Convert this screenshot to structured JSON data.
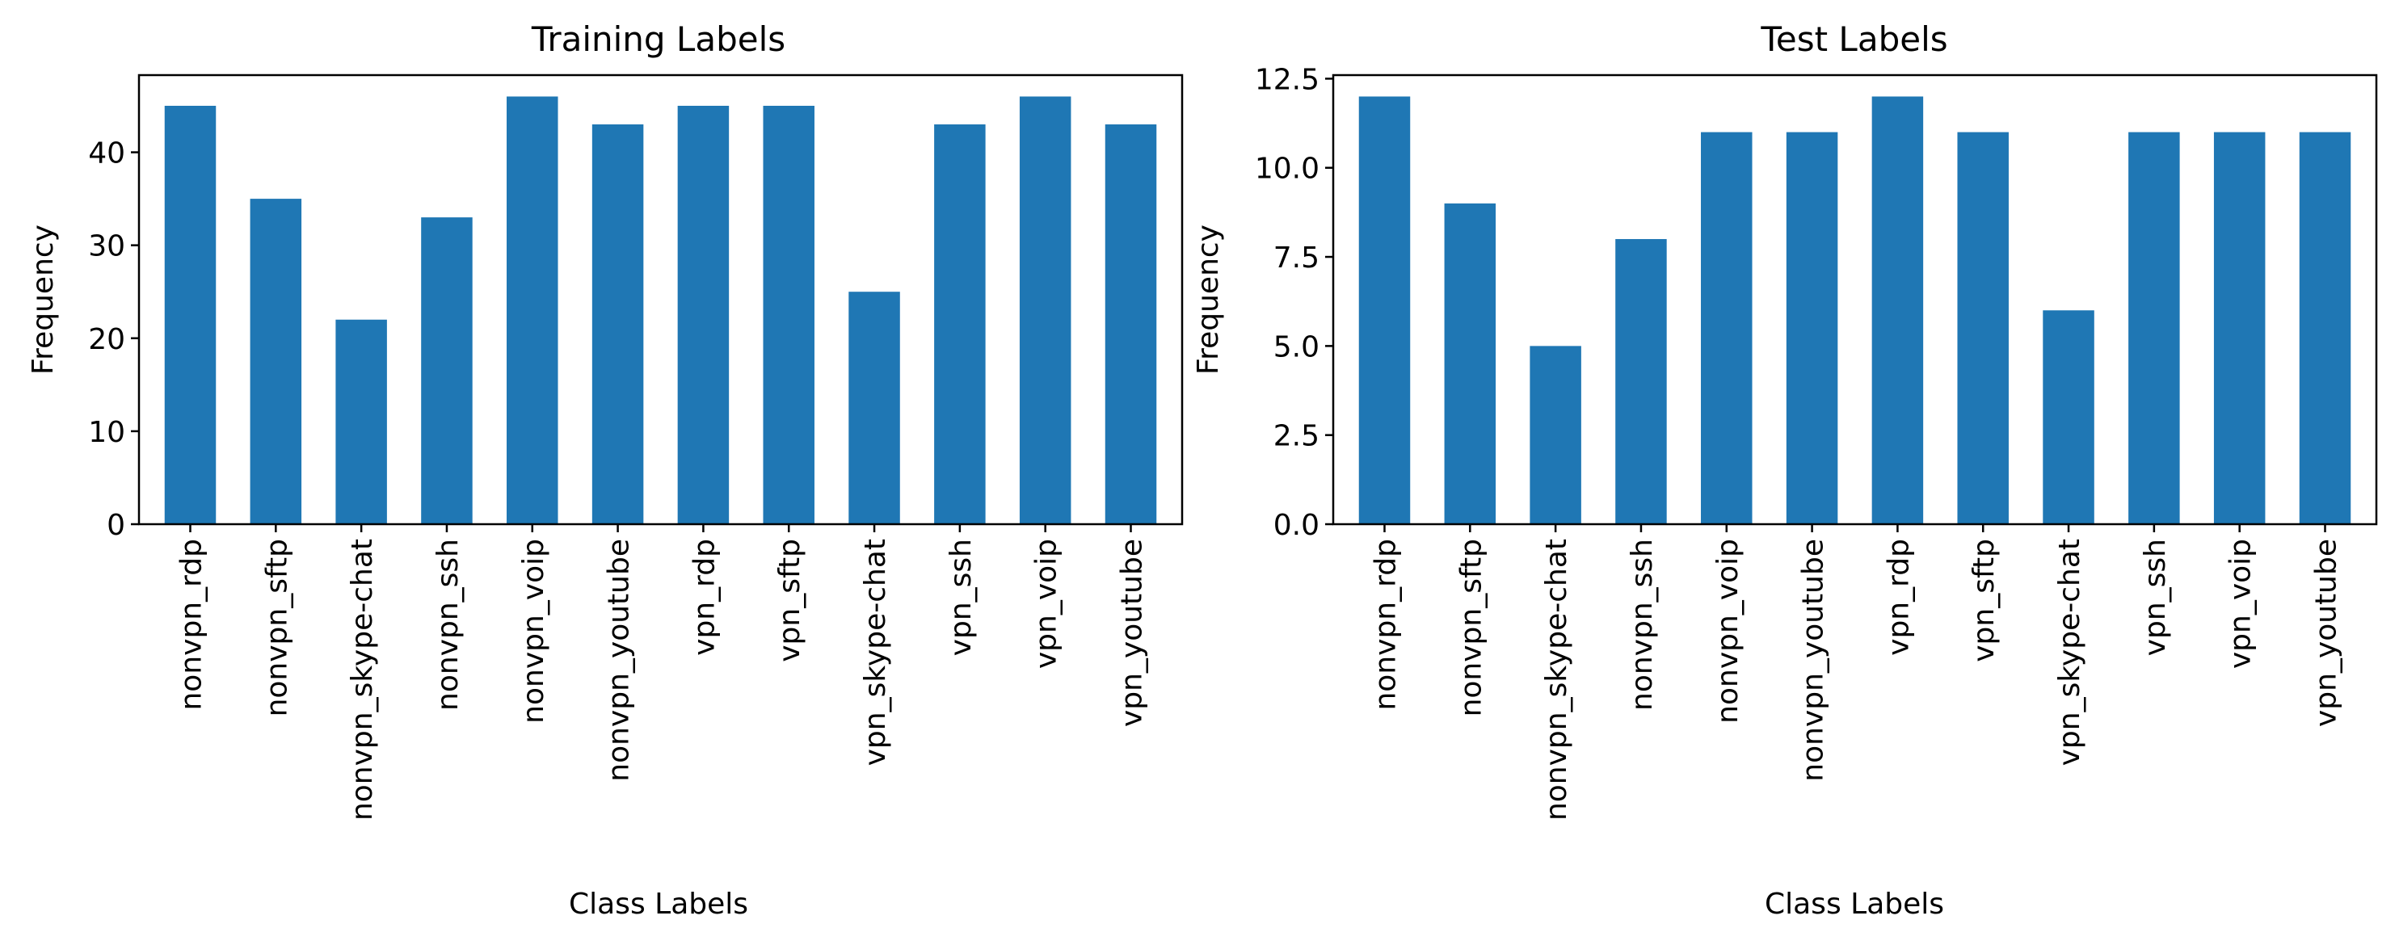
{
  "chart_data": [
    {
      "type": "bar",
      "title": "Training Labels",
      "xlabel": "Class Labels",
      "ylabel": "Frequency",
      "categories": [
        "nonvpn_rdp",
        "nonvpn_sftp",
        "nonvpn_skype-chat",
        "nonvpn_ssh",
        "nonvpn_voip",
        "nonvpn_youtube",
        "vpn_rdp",
        "vpn_sftp",
        "vpn_skype-chat",
        "vpn_ssh",
        "vpn_voip",
        "vpn_youtube"
      ],
      "values": [
        45,
        35,
        22,
        33,
        46,
        43,
        45,
        45,
        25,
        43,
        46,
        43
      ],
      "yticks": [
        "0",
        "10",
        "20",
        "30",
        "40"
      ],
      "ylim": [
        0,
        48.3
      ],
      "grid": false,
      "color": "#1f77b4"
    },
    {
      "type": "bar",
      "title": "Test Labels",
      "xlabel": "Class Labels",
      "ylabel": "Frequency",
      "categories": [
        "nonvpn_rdp",
        "nonvpn_sftp",
        "nonvpn_skype-chat",
        "nonvpn_ssh",
        "nonvpn_voip",
        "nonvpn_youtube",
        "vpn_rdp",
        "vpn_sftp",
        "vpn_skype-chat",
        "vpn_ssh",
        "vpn_voip",
        "vpn_youtube"
      ],
      "values": [
        12,
        9,
        5,
        8,
        11,
        11,
        12,
        11,
        6,
        11,
        11,
        11
      ],
      "yticks": [
        "0.0",
        "2.5",
        "5.0",
        "7.5",
        "10.0",
        "12.5"
      ],
      "ylim": [
        0,
        12.6
      ],
      "grid": false,
      "color": "#1f77b4"
    }
  ]
}
